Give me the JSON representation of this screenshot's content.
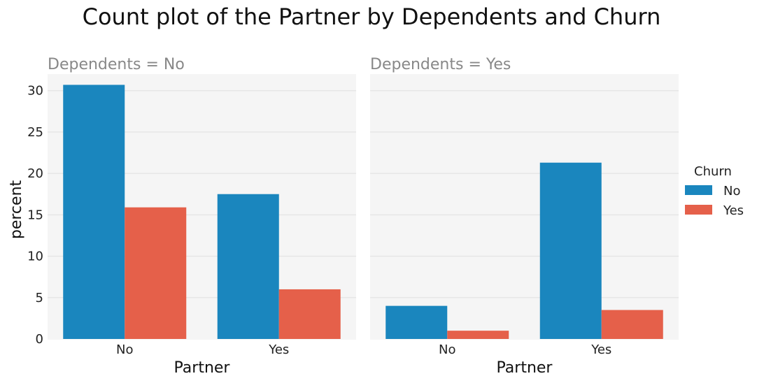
{
  "title": "Count plot of the Partner by Dependents and Churn",
  "colors": {
    "No": "#1a86be",
    "Yes": "#e5604a",
    "panel_bg": "#f5f5f5",
    "grid": "#e6e6e6",
    "facet_title": "#888888"
  },
  "chart_data": {
    "type": "bar",
    "ylabel": "percent",
    "xlabel": "Partner",
    "ylim": [
      0,
      32
    ],
    "yticks": [
      0,
      5,
      10,
      15,
      20,
      25,
      30
    ],
    "categories": [
      "No",
      "Yes"
    ],
    "legend": {
      "title": "Churn",
      "entries": [
        "No",
        "Yes"
      ],
      "placement": "right"
    },
    "facets": [
      {
        "title": "Dependents = No",
        "series": [
          {
            "name": "No",
            "values": [
              30.7,
              17.5
            ]
          },
          {
            "name": "Yes",
            "values": [
              15.9,
              6.0
            ]
          }
        ]
      },
      {
        "title": "Dependents = Yes",
        "series": [
          {
            "name": "No",
            "values": [
              4.0,
              21.3
            ]
          },
          {
            "name": "Yes",
            "values": [
              1.0,
              3.5
            ]
          }
        ]
      }
    ]
  }
}
